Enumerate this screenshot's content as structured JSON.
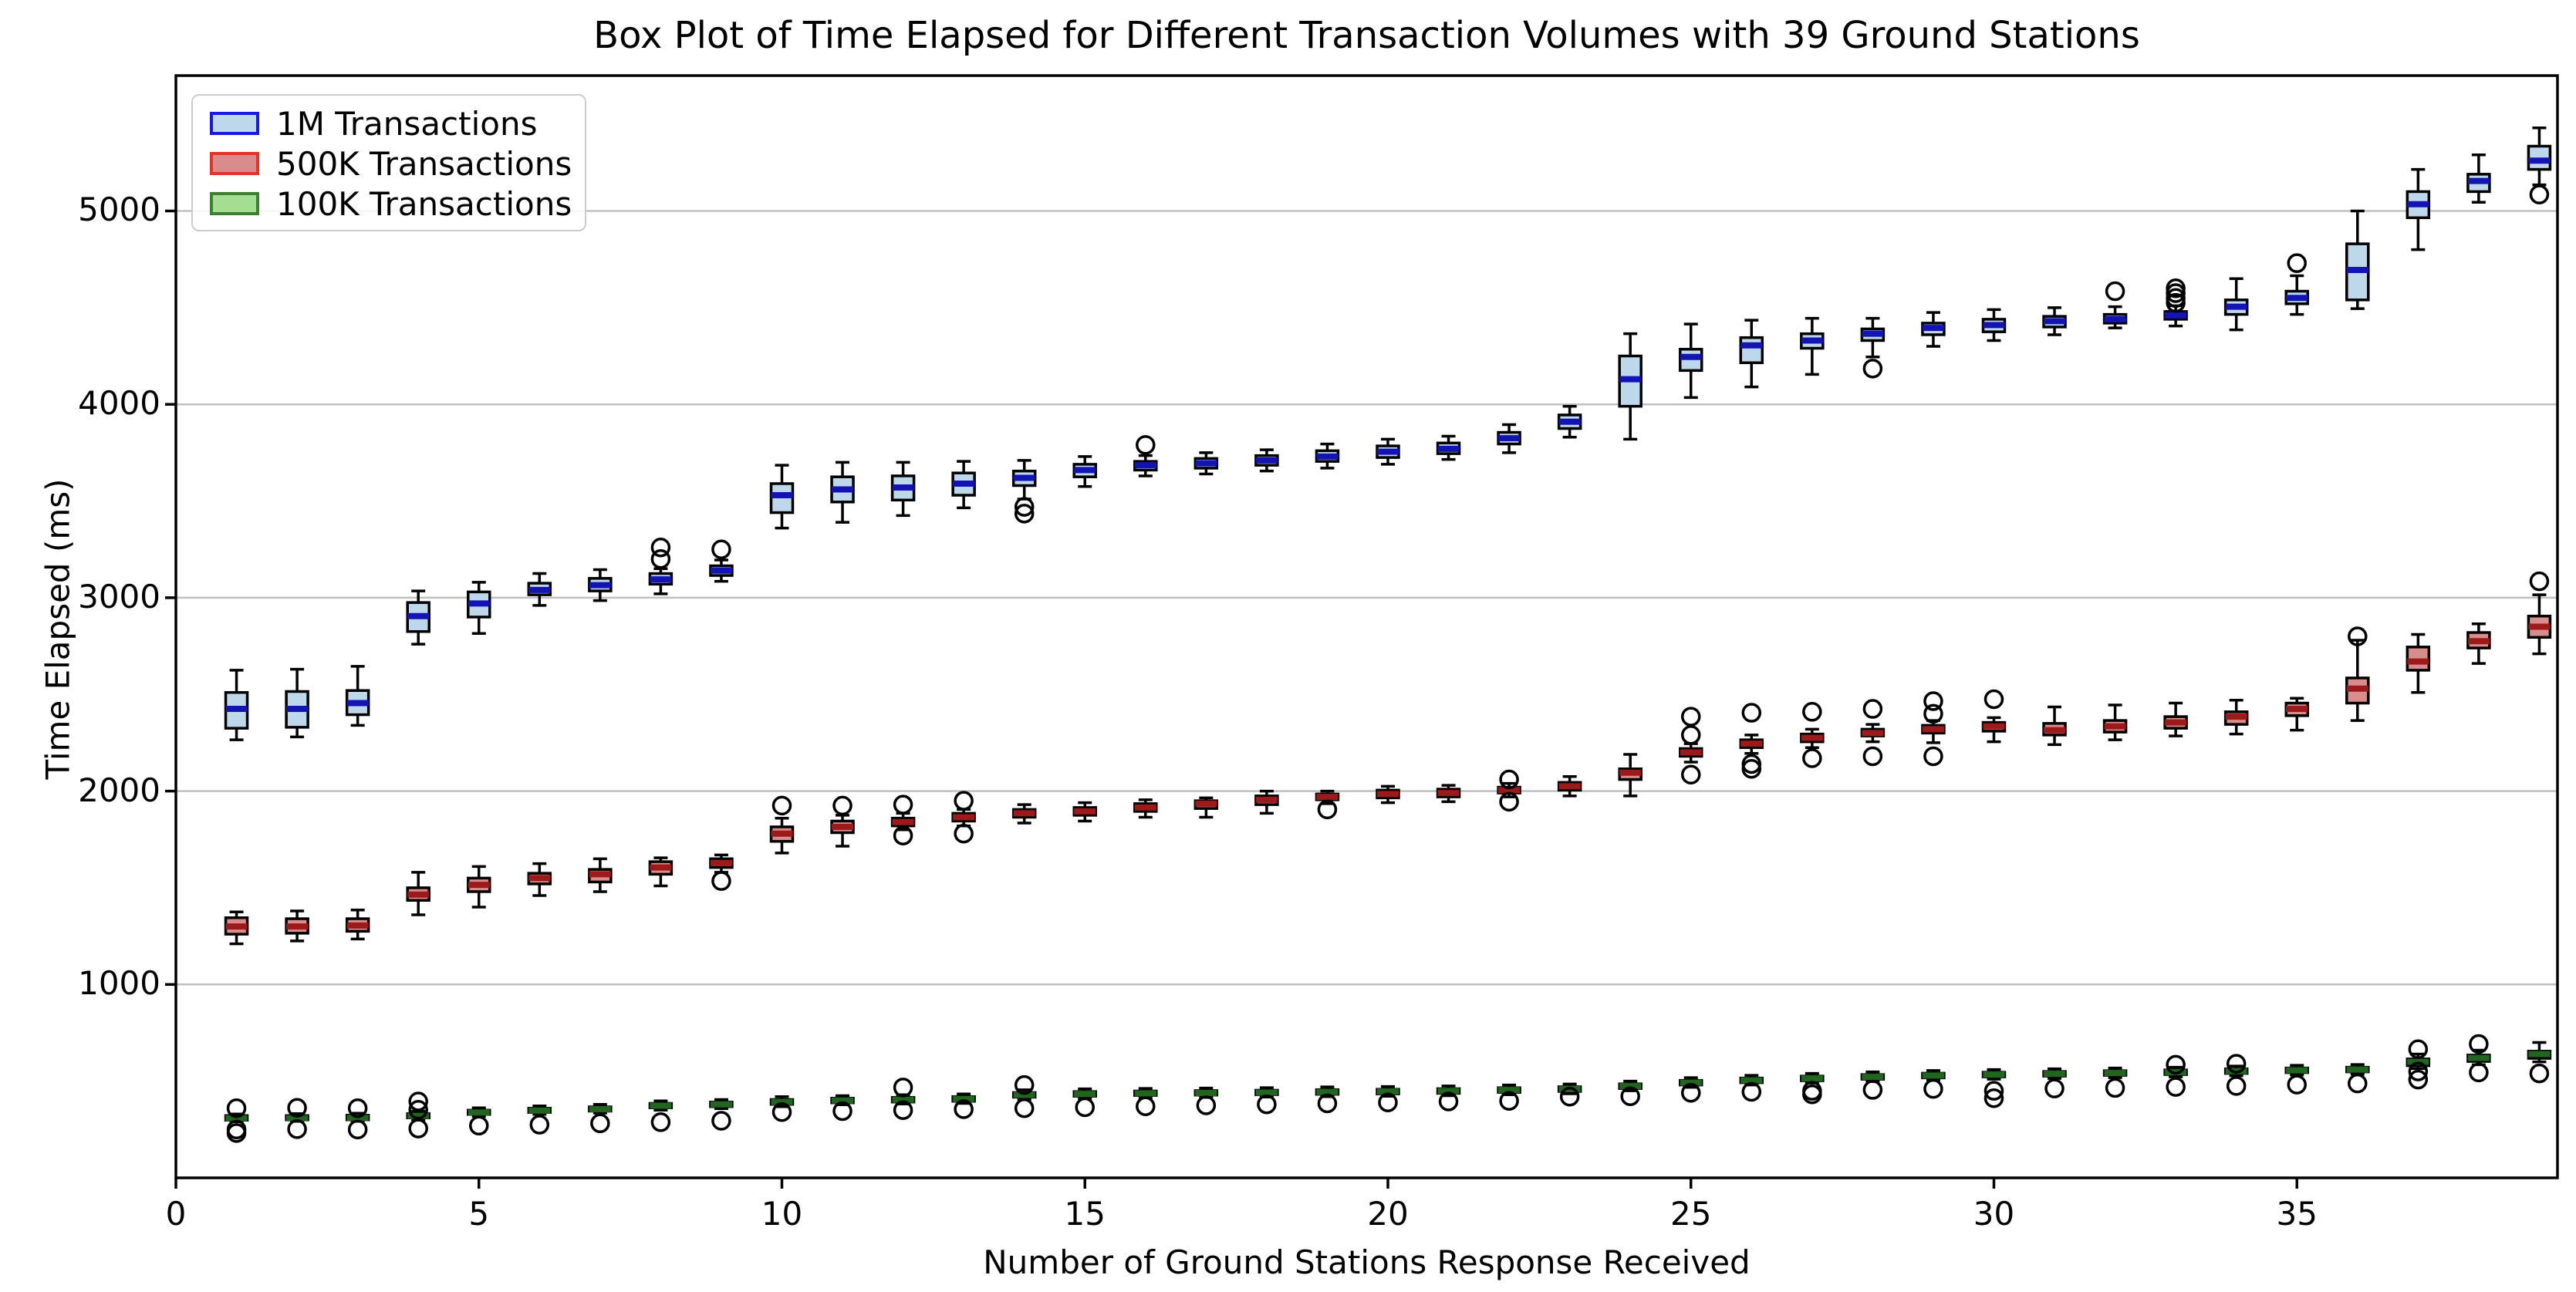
{
  "title": "Box Plot of Time Elapsed for Different Transaction Volumes with 39 Ground Stations",
  "axes": {
    "xlabel": "Number of Ground Stations Response Received",
    "ylabel": "Time Elapsed (ms)",
    "x_ticks": [
      0,
      5,
      10,
      15,
      20,
      25,
      30,
      35
    ],
    "y_ticks": [
      1000,
      2000,
      3000,
      4000,
      5000
    ],
    "xlim": [
      0,
      39.3
    ],
    "ylim": [
      0,
      5700
    ],
    "grid": "horizontal"
  },
  "legend": {
    "position": "upper-left",
    "items": [
      {
        "label": "1M Transactions",
        "face": "#bcd8ea",
        "edge": "#1919e6"
      },
      {
        "label": "500K Transactions",
        "face": "#d98c8c",
        "edge": "#e63226"
      },
      {
        "label": "100K Transactions",
        "face": "#a3de93",
        "edge": "#3c8031"
      }
    ]
  },
  "colors": {
    "gridline": "#c0c0c0",
    "spine": "#000000",
    "whisker": "#000000",
    "box_edge": "#000000",
    "outlier_edge": "#000000",
    "background": "#ffffff"
  },
  "chart_data": {
    "type": "boxplot",
    "x_start": 1,
    "note": "boxes are [whisker_low, q1, median, q3, whisker_high, [outliers]] for x = 1..39",
    "series": [
      {
        "name": "1M Transactions",
        "face": "#bcd8ea",
        "median_color": "#1414b4",
        "boxes": [
          [
            2265,
            2325,
            2425,
            2510,
            2625,
            []
          ],
          [
            2280,
            2330,
            2425,
            2515,
            2630,
            []
          ],
          [
            2340,
            2395,
            2455,
            2520,
            2645,
            []
          ],
          [
            2760,
            2825,
            2905,
            2975,
            3035,
            []
          ],
          [
            2815,
            2900,
            2970,
            3030,
            3080,
            []
          ],
          [
            2960,
            3015,
            3040,
            3075,
            3125,
            []
          ],
          [
            2985,
            3035,
            3065,
            3100,
            3145,
            []
          ],
          [
            3020,
            3070,
            3095,
            3125,
            3150,
            [
              3200,
              3260
            ]
          ],
          [
            3085,
            3115,
            3140,
            3165,
            3195,
            [
              3250
            ]
          ],
          [
            3360,
            3440,
            3530,
            3590,
            3685,
            []
          ],
          [
            3390,
            3495,
            3560,
            3625,
            3700,
            []
          ],
          [
            3425,
            3505,
            3570,
            3630,
            3700,
            []
          ],
          [
            3465,
            3530,
            3590,
            3645,
            3705,
            []
          ],
          [
            3510,
            3580,
            3620,
            3655,
            3710,
            [
              3470,
              3435
            ]
          ],
          [
            3575,
            3625,
            3660,
            3690,
            3730,
            []
          ],
          [
            3630,
            3660,
            3685,
            3705,
            3735,
            [
              3790
            ]
          ],
          [
            3640,
            3670,
            3695,
            3720,
            3750,
            []
          ],
          [
            3655,
            3685,
            3710,
            3735,
            3765,
            []
          ],
          [
            3670,
            3705,
            3730,
            3760,
            3795,
            []
          ],
          [
            3690,
            3725,
            3755,
            3785,
            3820,
            []
          ],
          [
            3715,
            3745,
            3770,
            3800,
            3835,
            []
          ],
          [
            3750,
            3795,
            3825,
            3855,
            3895,
            []
          ],
          [
            3830,
            3875,
            3910,
            3945,
            3990,
            []
          ],
          [
            3820,
            3990,
            4130,
            4250,
            4365,
            []
          ],
          [
            4035,
            4175,
            4245,
            4285,
            4415,
            []
          ],
          [
            4090,
            4215,
            4305,
            4345,
            4435,
            []
          ],
          [
            4155,
            4290,
            4330,
            4365,
            4445,
            []
          ],
          [
            4245,
            4330,
            4365,
            4390,
            4445,
            [
              4185
            ]
          ],
          [
            4300,
            4360,
            4395,
            4420,
            4475,
            []
          ],
          [
            4330,
            4375,
            4410,
            4440,
            4490,
            []
          ],
          [
            4360,
            4400,
            4430,
            4455,
            4500,
            []
          ],
          [
            4395,
            4420,
            4440,
            4465,
            4505,
            [
              4585
            ]
          ],
          [
            4405,
            4440,
            4460,
            4480,
            4510,
            [
              4525,
              4550,
              4575,
              4600
            ]
          ],
          [
            4385,
            4465,
            4505,
            4540,
            4650,
            []
          ],
          [
            4465,
            4520,
            4550,
            4585,
            4665,
            [
              4730
            ]
          ],
          [
            4495,
            4540,
            4695,
            4830,
            5000,
            []
          ],
          [
            4800,
            4965,
            5035,
            5100,
            5215,
            []
          ],
          [
            5045,
            5100,
            5155,
            5190,
            5290,
            []
          ],
          [
            5135,
            5215,
            5260,
            5335,
            5430,
            [
              5085
            ]
          ]
        ]
      },
      {
        "name": "500K Transactions",
        "face": "#d98c8c",
        "median_color": "#9c1a1a",
        "boxes": [
          [
            1210,
            1260,
            1300,
            1345,
            1375,
            []
          ],
          [
            1225,
            1265,
            1300,
            1340,
            1380,
            []
          ],
          [
            1235,
            1275,
            1305,
            1340,
            1385,
            []
          ],
          [
            1360,
            1435,
            1465,
            1500,
            1580,
            []
          ],
          [
            1400,
            1480,
            1515,
            1550,
            1610,
            []
          ],
          [
            1460,
            1520,
            1550,
            1575,
            1625,
            []
          ],
          [
            1480,
            1530,
            1570,
            1595,
            1650,
            []
          ],
          [
            1510,
            1570,
            1605,
            1635,
            1655,
            []
          ],
          [
            1580,
            1605,
            1628,
            1650,
            1670,
            [
              1535
            ]
          ],
          [
            1680,
            1740,
            1780,
            1815,
            1860,
            [
              1925
            ]
          ],
          [
            1715,
            1785,
            1815,
            1845,
            1875,
            [
              1925
            ]
          ],
          [
            1800,
            1820,
            1840,
            1860,
            1885,
            [
              1930,
              1770
            ]
          ],
          [
            1820,
            1845,
            1865,
            1885,
            1905,
            [
              1950,
              1780
            ]
          ],
          [
            1835,
            1865,
            1885,
            1905,
            1930,
            []
          ],
          [
            1845,
            1875,
            1895,
            1915,
            1940,
            []
          ],
          [
            1865,
            1895,
            1915,
            1935,
            1955,
            []
          ],
          [
            1865,
            1910,
            1935,
            1950,
            1965,
            []
          ],
          [
            1885,
            1930,
            1955,
            1975,
            2000,
            []
          ],
          [
            1935,
            1955,
            1970,
            1985,
            2000,
            [
              1905
            ]
          ],
          [
            1940,
            1965,
            1985,
            2005,
            2025,
            []
          ],
          [
            1945,
            1970,
            1990,
            2010,
            2030,
            []
          ],
          [
            1970,
            1990,
            2005,
            2020,
            2040,
            [
              2060,
              1945
            ]
          ],
          [
            1975,
            2005,
            2025,
            2045,
            2075,
            []
          ],
          [
            1975,
            2060,
            2095,
            2115,
            2190,
            []
          ],
          [
            2150,
            2180,
            2200,
            2220,
            2245,
            [
              2385,
              2290,
              2085
            ]
          ],
          [
            2195,
            2225,
            2245,
            2265,
            2290,
            [
              2405,
              2140,
              2115
            ]
          ],
          [
            2225,
            2255,
            2275,
            2295,
            2320,
            [
              2410,
              2170
            ]
          ],
          [
            2255,
            2285,
            2300,
            2320,
            2345,
            [
              2425,
              2180
            ]
          ],
          [
            2250,
            2300,
            2320,
            2340,
            2365,
            [
              2465,
              2400,
              2180
            ]
          ],
          [
            2255,
            2310,
            2335,
            2355,
            2380,
            [
              2475
            ]
          ],
          [
            2240,
            2290,
            2315,
            2350,
            2435,
            []
          ],
          [
            2265,
            2305,
            2335,
            2365,
            2445,
            []
          ],
          [
            2285,
            2325,
            2355,
            2385,
            2455,
            []
          ],
          [
            2295,
            2345,
            2385,
            2410,
            2470,
            []
          ],
          [
            2315,
            2390,
            2425,
            2455,
            2480,
            []
          ],
          [
            2365,
            2455,
            2530,
            2585,
            2780,
            [
              2800
            ]
          ],
          [
            2510,
            2625,
            2670,
            2745,
            2810,
            []
          ],
          [
            2660,
            2740,
            2775,
            2820,
            2865,
            []
          ],
          [
            2710,
            2795,
            2850,
            2905,
            3015,
            [
              3085
            ]
          ]
        ]
      },
      {
        "name": "100K Transactions",
        "face": "#a3de93",
        "median_color": "#20661f",
        "boxes": [
          [
            290,
            298,
            308,
            322,
            330,
            [
              360,
              250,
              232
            ]
          ],
          [
            292,
            300,
            308,
            322,
            332,
            [
              362,
              252
            ]
          ],
          [
            292,
            300,
            310,
            324,
            334,
            [
              360,
              250
            ]
          ],
          [
            300,
            310,
            320,
            332,
            345,
            [
              395,
              352,
              255
            ]
          ],
          [
            318,
            328,
            338,
            350,
            362,
            [
              270
            ]
          ],
          [
            328,
            338,
            348,
            360,
            372,
            [
              275
            ]
          ],
          [
            335,
            345,
            355,
            367,
            380,
            [
              282
            ]
          ],
          [
            350,
            362,
            373,
            385,
            398,
            [
              288
            ]
          ],
          [
            358,
            368,
            380,
            392,
            405,
            [
              295
            ]
          ],
          [
            368,
            380,
            392,
            405,
            420,
            [
              340
            ]
          ],
          [
            378,
            388,
            400,
            412,
            425,
            [
              345
            ]
          ],
          [
            382,
            392,
            404,
            416,
            430,
            [
              467,
              350
            ]
          ],
          [
            385,
            396,
            408,
            420,
            434,
            [
              355
            ]
          ],
          [
            405,
            417,
            429,
            441,
            455,
            [
              480,
              360
            ]
          ],
          [
            410,
            422,
            434,
            446,
            460,
            [
              365
            ]
          ],
          [
            414,
            426,
            437,
            449,
            462,
            [
              370
            ]
          ],
          [
            416,
            428,
            439,
            451,
            464,
            [
              375
            ]
          ],
          [
            418,
            430,
            441,
            453,
            466,
            [
              380
            ]
          ],
          [
            420,
            432,
            444,
            456,
            470,
            [
              385
            ]
          ],
          [
            422,
            434,
            446,
            458,
            472,
            [
              390
            ]
          ],
          [
            425,
            437,
            449,
            461,
            475,
            [
              395
            ]
          ],
          [
            430,
            442,
            454,
            466,
            480,
            [
              398
            ]
          ],
          [
            435,
            447,
            459,
            471,
            485,
            [
              420
            ]
          ],
          [
            450,
            462,
            474,
            486,
            500,
            [
              422
            ]
          ],
          [
            468,
            480,
            492,
            504,
            518,
            [
              440
            ]
          ],
          [
            480,
            492,
            504,
            516,
            530,
            [
              445
            ]
          ],
          [
            490,
            502,
            514,
            526,
            540,
            [
              450,
              432
            ]
          ],
          [
            498,
            510,
            522,
            534,
            548,
            [
              455
            ]
          ],
          [
            505,
            517,
            529,
            541,
            555,
            [
              460
            ]
          ],
          [
            510,
            522,
            534,
            546,
            560,
            [
              450,
              412
            ]
          ],
          [
            514,
            526,
            538,
            550,
            564,
            [
              462
            ]
          ],
          [
            518,
            530,
            542,
            554,
            568,
            [
              465
            ]
          ],
          [
            522,
            534,
            546,
            558,
            572,
            [
              585,
              470
            ]
          ],
          [
            528,
            540,
            552,
            564,
            578,
            [
              590,
              475
            ]
          ],
          [
            532,
            544,
            556,
            568,
            582,
            [
              482
            ]
          ],
          [
            536,
            548,
            560,
            572,
            586,
            [
              488
            ]
          ],
          [
            565,
            580,
            600,
            615,
            640,
            [
              665,
              550,
              508
            ]
          ],
          [
            585,
            602,
            620,
            635,
            660,
            [
              692,
              545
            ]
          ],
          [
            600,
            618,
            640,
            655,
            700,
            [
              540
            ]
          ]
        ]
      }
    ]
  }
}
